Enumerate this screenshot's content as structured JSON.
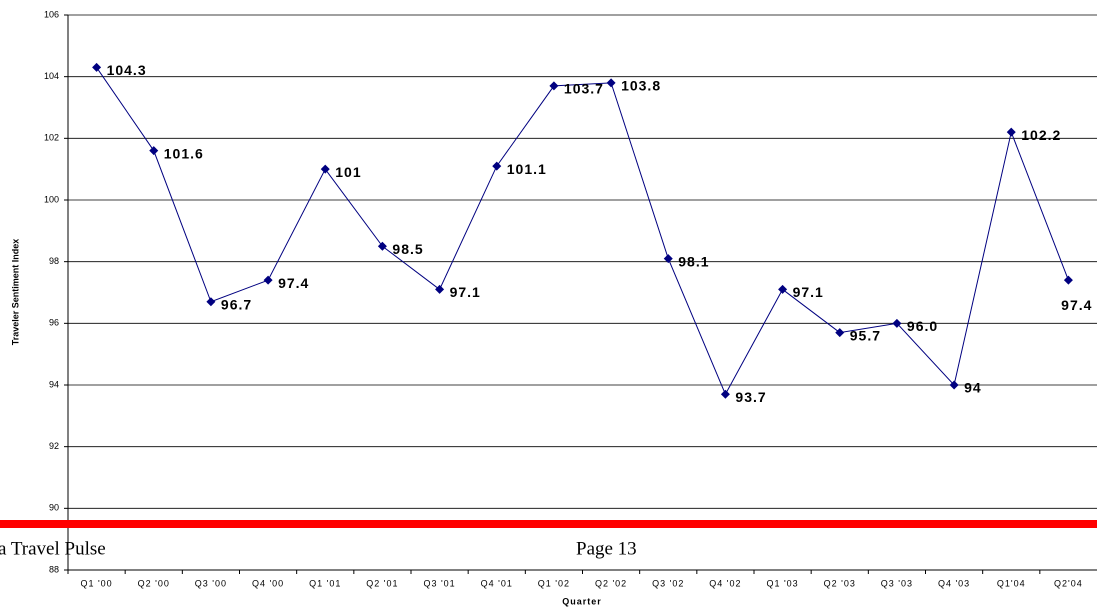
{
  "chart_data": {
    "type": "line",
    "y_label": "Traveler Sentiment Index",
    "x_label": "Quarter",
    "categories": [
      "Q1 '00",
      "Q2 '00",
      "Q3 '00",
      "Q4 '00",
      "Q1 '01",
      "Q2 '01",
      "Q3 '01",
      "Q4 '01",
      "Q1 '02",
      "Q2 '02",
      "Q3 '02",
      "Q4 '02",
      "Q1 '03",
      "Q2 '03",
      "Q3 '03",
      "Q4 '03",
      "Q1'04",
      "Q2'04"
    ],
    "values": [
      104.3,
      101.6,
      96.7,
      97.4,
      101,
      98.5,
      97.1,
      101.1,
      103.7,
      103.8,
      98.1,
      93.7,
      97.1,
      95.7,
      96.0,
      94,
      102.2,
      97.4
    ],
    "value_labels": [
      "104.3",
      "101.6",
      "96.7",
      "97.4",
      "101",
      "98.5",
      "97.1",
      "101.1",
      "103.7",
      "103.8",
      "98.1",
      "93.7",
      "97.1",
      "95.7",
      "96.0",
      "94",
      "102.2",
      "97.4"
    ],
    "color": "#000080",
    "ylim": [
      88,
      106
    ],
    "yticks": [
      88,
      90,
      92,
      94,
      96,
      98,
      100,
      102,
      104,
      106
    ],
    "grid": true
  },
  "footer": {
    "left": "a Travel Pulse",
    "page": "Page 13"
  }
}
